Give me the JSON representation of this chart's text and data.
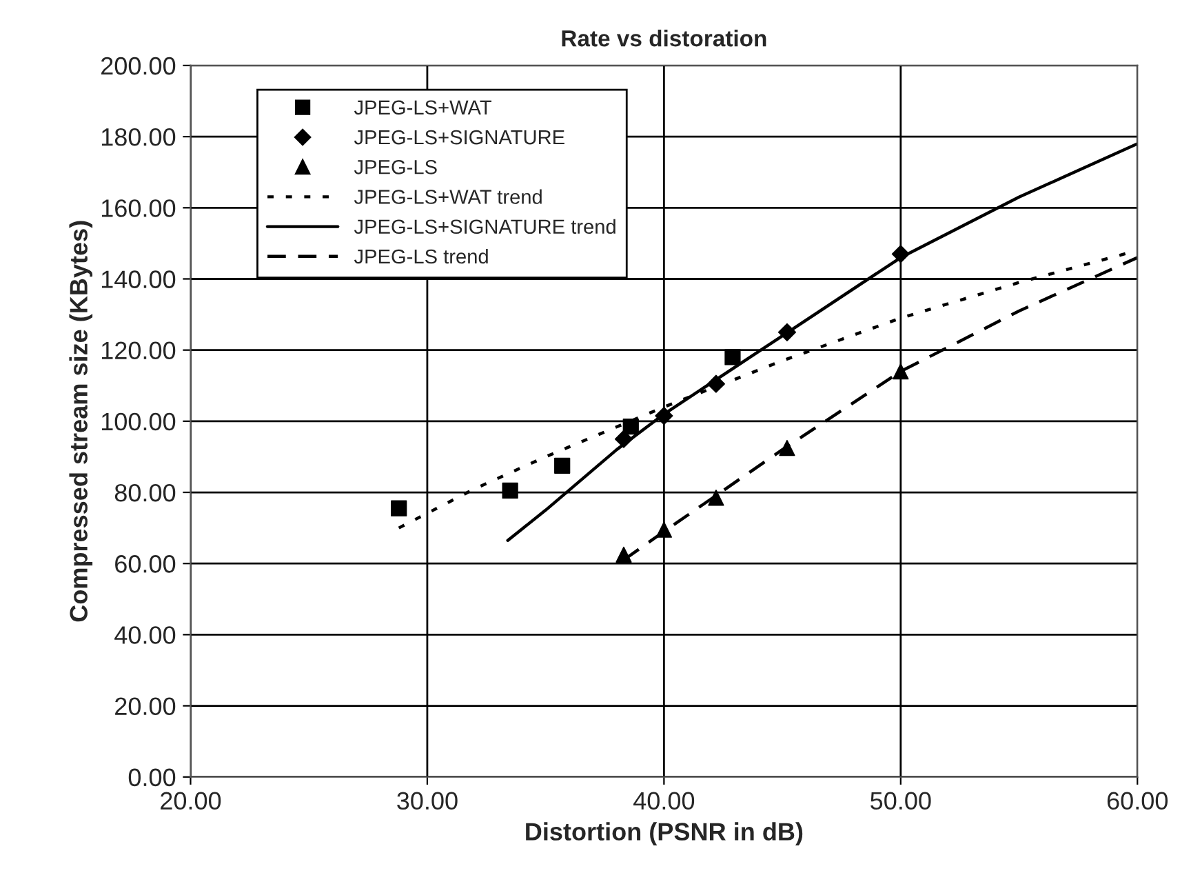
{
  "chart_data": {
    "type": "scatter",
    "title": "Rate vs distoration",
    "xlabel": "Distortion (PSNR in dB)",
    "ylabel": "Compressed stream size (KBytes)",
    "xlim": [
      20,
      60
    ],
    "ylim": [
      0,
      200
    ],
    "xticks": [
      {
        "value": 20,
        "label": "20.00"
      },
      {
        "value": 30,
        "label": "30.00"
      },
      {
        "value": 40,
        "label": "40.00"
      },
      {
        "value": 50,
        "label": "50.00"
      },
      {
        "value": 60,
        "label": "60.00"
      }
    ],
    "yticks": [
      {
        "value": 0,
        "label": "0.00"
      },
      {
        "value": 20,
        "label": "20.00"
      },
      {
        "value": 40,
        "label": "40.00"
      },
      {
        "value": 60,
        "label": "60.00"
      },
      {
        "value": 80,
        "label": "80.00"
      },
      {
        "value": 100,
        "label": "100.00"
      },
      {
        "value": 120,
        "label": "120.00"
      },
      {
        "value": 140,
        "label": "140.00"
      },
      {
        "value": 160,
        "label": "160.00"
      },
      {
        "value": 180,
        "label": "180.00"
      },
      {
        "value": 200,
        "label": "200.00"
      }
    ],
    "grid": true,
    "legend": "top left",
    "series": [
      {
        "name": "JPEG-LS+WAT",
        "marker": "square",
        "color": "#000000",
        "x": [
          28.8,
          33.5,
          35.7,
          38.6,
          42.9
        ],
        "values": [
          75.5,
          80.5,
          87.5,
          98.5,
          118
        ]
      },
      {
        "name": "JPEG-LS+SIGNATURE",
        "marker": "diamond",
        "color": "#000000",
        "x": [
          38.3,
          40,
          42.2,
          45.2,
          50
        ],
        "values": [
          95,
          101.5,
          110.5,
          125,
          147
        ]
      },
      {
        "name": "JPEG-LS",
        "marker": "triangle",
        "color": "#000000",
        "x": [
          38.3,
          40,
          42.2,
          45.2,
          50
        ],
        "values": [
          62.5,
          69.5,
          78.5,
          92.5,
          114
        ]
      },
      {
        "name": "JPEG-LS+WAT trend",
        "type": "line",
        "line_style": "dotted",
        "color": "#000000",
        "x": [
          28.8,
          32,
          35,
          40,
          45,
          50,
          55,
          60
        ],
        "values": [
          70,
          81,
          90,
          104,
          117,
          129,
          139,
          148
        ]
      },
      {
        "name": "JPEG-LS+SIGNATURE trend",
        "type": "line",
        "line_style": "solid",
        "color": "#000000",
        "x": [
          33.4,
          35,
          38,
          40,
          45,
          50,
          55,
          60
        ],
        "values": [
          66.5,
          75,
          92,
          102,
          124,
          146,
          163,
          178
        ]
      },
      {
        "name": "JPEG-LS trend",
        "type": "line",
        "line_style": "dashed",
        "color": "#000000",
        "x": [
          38.3,
          40,
          45,
          50,
          55,
          60
        ],
        "values": [
          61,
          69,
          92,
          114,
          131,
          146
        ]
      }
    ]
  }
}
